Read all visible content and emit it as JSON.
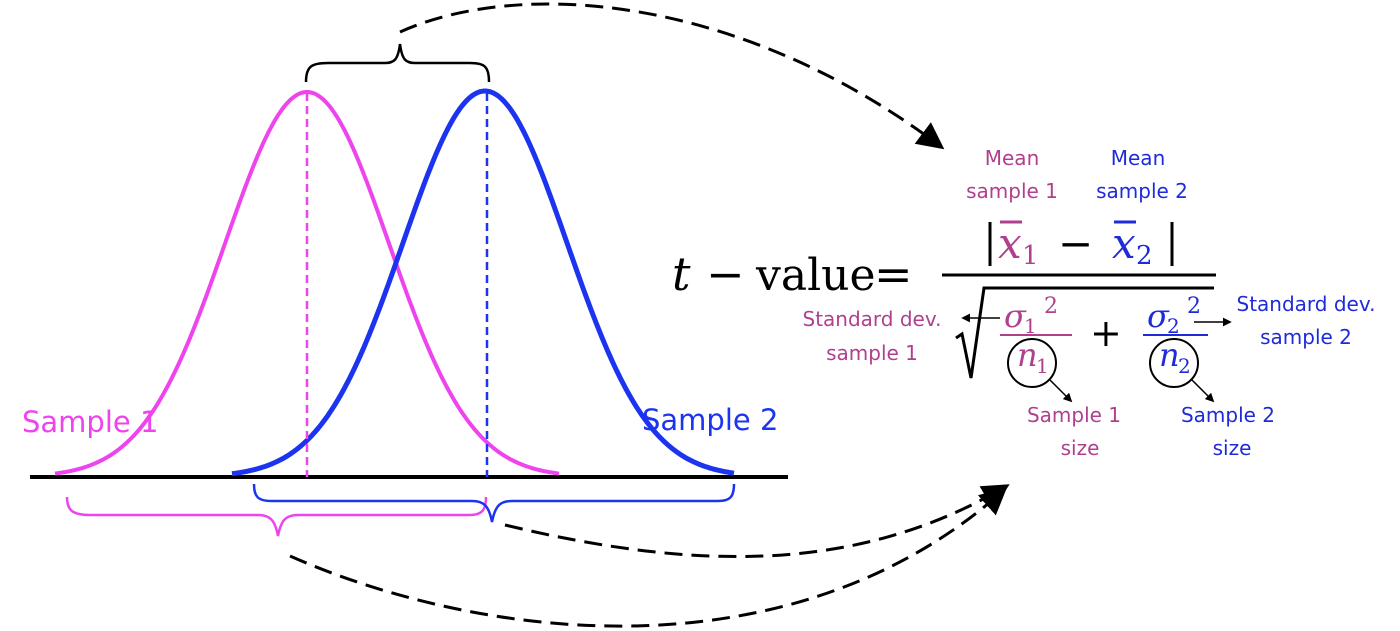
{
  "colors": {
    "sample1": "#ee44ee",
    "sample1_text": "#b0408e",
    "sample2": "#1c34f0",
    "sample2_text": "#1f2bd8",
    "ink": "#000000"
  },
  "curves": {
    "sample1_label": "Sample 1",
    "sample2_label": "Sample 2"
  },
  "formula": {
    "lhs_t": "t",
    "lhs_minus": "−",
    "lhs_value": "value",
    "equals": "=",
    "num_x1": "x",
    "num_x1_sub": "1",
    "num_minus": "−",
    "num_x2": "x",
    "num_x2_sub": "2",
    "den_sigma1": "σ",
    "den_sigma1_sub": "1",
    "den_sigma1_sup": "2",
    "den_n1": "n",
    "den_n1_sub": "1",
    "den_plus": "+",
    "den_sigma2": "σ",
    "den_sigma2_sub": "2",
    "den_sigma2_sup": "2",
    "den_n2": "n",
    "den_n2_sub": "2"
  },
  "annotations": {
    "mean1_line1": "Mean",
    "mean1_line2": "sample 1",
    "mean2_line1": "Mean",
    "mean2_line2": "sample 2",
    "sd1_line1": "Standard dev.",
    "sd1_line2": "sample 1",
    "sd2_line1": "Standard dev.",
    "sd2_line2": "sample 2",
    "size1_line1": "Sample 1",
    "size1_line2": "size",
    "size2_line1": "Sample 2",
    "size2_line2": "size"
  }
}
